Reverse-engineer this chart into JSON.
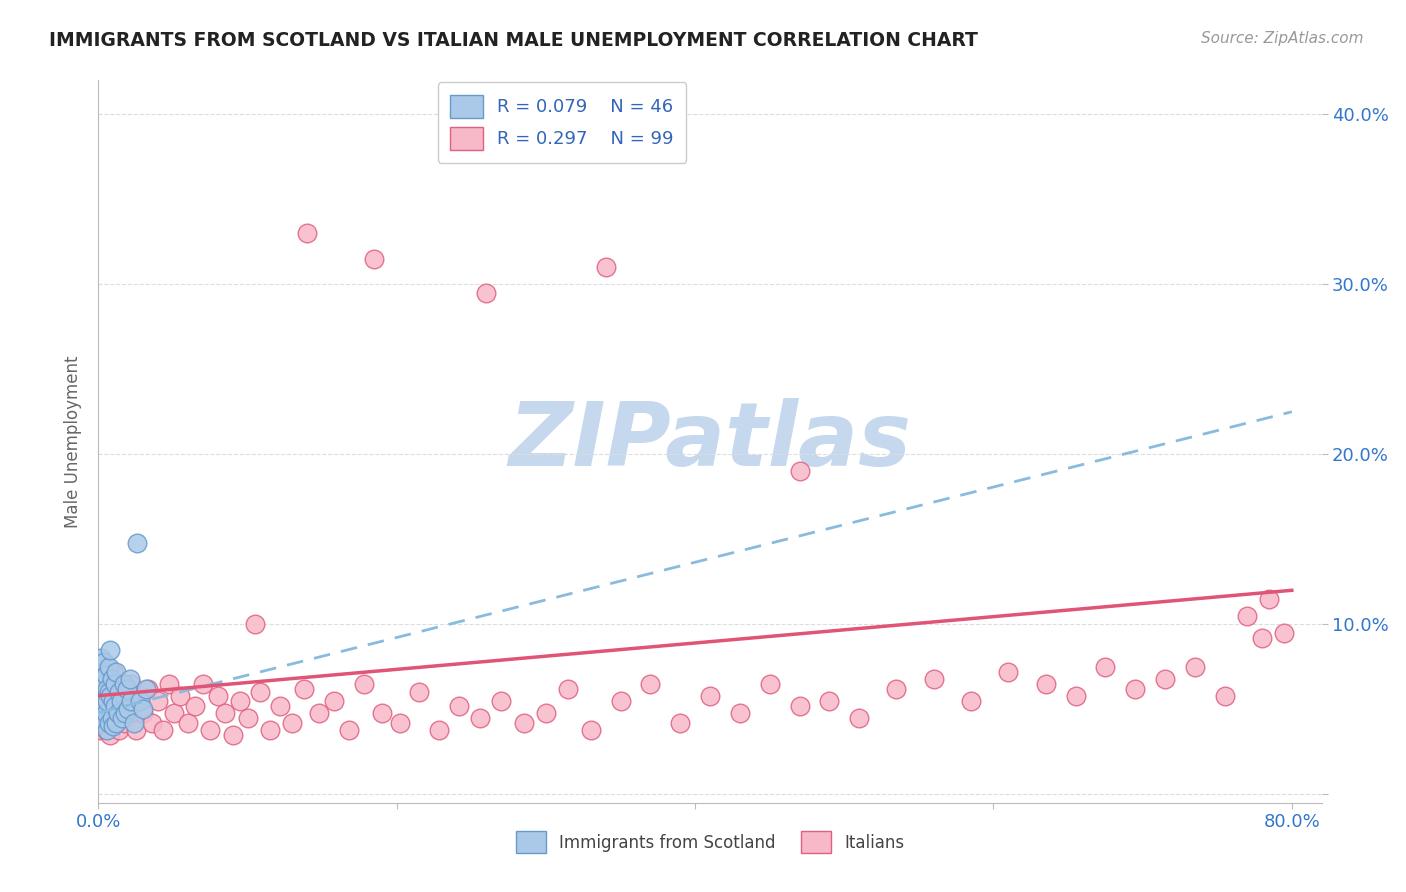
{
  "title": "IMMIGRANTS FROM SCOTLAND VS ITALIAN MALE UNEMPLOYMENT CORRELATION CHART",
  "source": "Source: ZipAtlas.com",
  "ylabel": "Male Unemployment",
  "xlim": [
    0.0,
    0.82
  ],
  "ylim": [
    -0.005,
    0.42
  ],
  "xtick_positions": [
    0.0,
    0.2,
    0.4,
    0.6,
    0.8
  ],
  "xtick_labels": [
    "0.0%",
    "",
    "",
    "",
    "80.0%"
  ],
  "ytick_positions": [
    0.0,
    0.1,
    0.2,
    0.3,
    0.4
  ],
  "ytick_labels": [
    "",
    "10.0%",
    "20.0%",
    "30.0%",
    "40.0%"
  ],
  "scotland_R": 0.079,
  "scotland_N": 46,
  "italian_R": 0.297,
  "italian_N": 99,
  "scotland_color": "#aac9e8",
  "scotland_edge_color": "#6699cc",
  "italian_color": "#f7b8c8",
  "italian_edge_color": "#e06080",
  "scotland_line_color": "#88bbdd",
  "italian_line_color": "#e05575",
  "watermark_color": "#c5d8ee",
  "background_color": "#ffffff",
  "title_color": "#222222",
  "axis_label_color": "#666666",
  "tick_label_color": "#3377cc",
  "grid_color": "#dddddd",
  "legend_text_color": "#3366bb",
  "source_color": "#999999",
  "scotland_x": [
    0.001,
    0.001,
    0.002,
    0.002,
    0.002,
    0.003,
    0.003,
    0.003,
    0.003,
    0.004,
    0.004,
    0.004,
    0.005,
    0.005,
    0.005,
    0.006,
    0.006,
    0.006,
    0.007,
    0.007,
    0.007,
    0.008,
    0.008,
    0.009,
    0.009,
    0.01,
    0.01,
    0.011,
    0.011,
    0.012,
    0.012,
    0.013,
    0.014,
    0.015,
    0.016,
    0.017,
    0.018,
    0.019,
    0.02,
    0.021,
    0.022,
    0.024,
    0.026,
    0.028,
    0.03,
    0.032
  ],
  "scotland_y": [
    0.045,
    0.062,
    0.05,
    0.068,
    0.08,
    0.048,
    0.058,
    0.072,
    0.055,
    0.042,
    0.065,
    0.078,
    0.052,
    0.048,
    0.07,
    0.055,
    0.062,
    0.038,
    0.06,
    0.075,
    0.042,
    0.058,
    0.085,
    0.045,
    0.068,
    0.055,
    0.04,
    0.065,
    0.052,
    0.042,
    0.072,
    0.048,
    0.06,
    0.055,
    0.045,
    0.065,
    0.048,
    0.062,
    0.05,
    0.068,
    0.055,
    0.042,
    0.148,
    0.055,
    0.05,
    0.062
  ],
  "italian_x": [
    0.001,
    0.001,
    0.002,
    0.002,
    0.003,
    0.003,
    0.003,
    0.004,
    0.004,
    0.005,
    0.005,
    0.006,
    0.006,
    0.007,
    0.007,
    0.008,
    0.008,
    0.009,
    0.009,
    0.01,
    0.01,
    0.011,
    0.012,
    0.013,
    0.014,
    0.015,
    0.016,
    0.018,
    0.02,
    0.022,
    0.025,
    0.028,
    0.03,
    0.033,
    0.036,
    0.04,
    0.043,
    0.047,
    0.051,
    0.055,
    0.06,
    0.065,
    0.07,
    0.075,
    0.08,
    0.085,
    0.09,
    0.095,
    0.1,
    0.108,
    0.115,
    0.122,
    0.13,
    0.138,
    0.148,
    0.158,
    0.168,
    0.178,
    0.19,
    0.202,
    0.215,
    0.228,
    0.242,
    0.256,
    0.27,
    0.285,
    0.3,
    0.315,
    0.33,
    0.35,
    0.37,
    0.39,
    0.41,
    0.43,
    0.45,
    0.47,
    0.49,
    0.51,
    0.535,
    0.56,
    0.585,
    0.61,
    0.635,
    0.655,
    0.675,
    0.695,
    0.715,
    0.735,
    0.755,
    0.77,
    0.785,
    0.795,
    0.47,
    0.34,
    0.26,
    0.185,
    0.14,
    0.105,
    0.78
  ],
  "italian_y": [
    0.055,
    0.042,
    0.065,
    0.038,
    0.07,
    0.048,
    0.058,
    0.045,
    0.062,
    0.052,
    0.038,
    0.068,
    0.042,
    0.055,
    0.065,
    0.048,
    0.035,
    0.06,
    0.045,
    0.055,
    0.072,
    0.042,
    0.062,
    0.048,
    0.038,
    0.055,
    0.045,
    0.042,
    0.052,
    0.065,
    0.038,
    0.058,
    0.048,
    0.062,
    0.042,
    0.055,
    0.038,
    0.065,
    0.048,
    0.058,
    0.042,
    0.052,
    0.065,
    0.038,
    0.058,
    0.048,
    0.035,
    0.055,
    0.045,
    0.06,
    0.038,
    0.052,
    0.042,
    0.062,
    0.048,
    0.055,
    0.038,
    0.065,
    0.048,
    0.042,
    0.06,
    0.038,
    0.052,
    0.045,
    0.055,
    0.042,
    0.048,
    0.062,
    0.038,
    0.055,
    0.065,
    0.042,
    0.058,
    0.048,
    0.065,
    0.052,
    0.055,
    0.045,
    0.062,
    0.068,
    0.055,
    0.072,
    0.065,
    0.058,
    0.075,
    0.062,
    0.068,
    0.075,
    0.058,
    0.105,
    0.115,
    0.095,
    0.19,
    0.31,
    0.295,
    0.315,
    0.33,
    0.1,
    0.092
  ],
  "scotland_trendline_x0": 0.0,
  "scotland_trendline_y0": 0.048,
  "scotland_trendline_x1": 0.8,
  "scotland_trendline_y1": 0.225,
  "italian_trendline_x0": 0.0,
  "italian_trendline_y0": 0.058,
  "italian_trendline_x1": 0.8,
  "italian_trendline_y1": 0.12
}
